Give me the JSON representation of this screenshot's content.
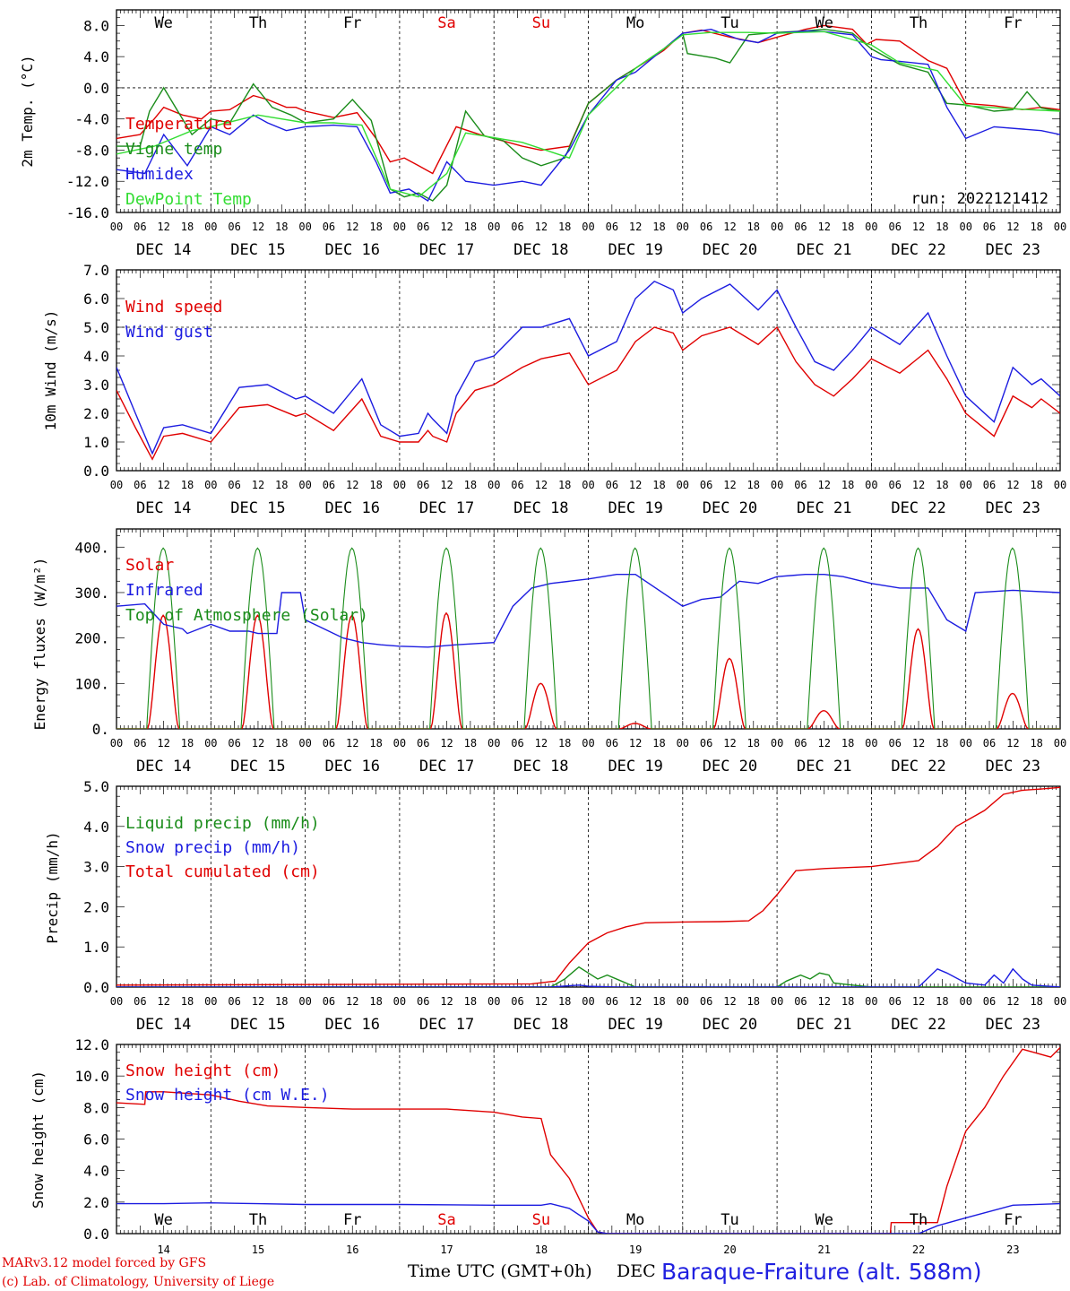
{
  "footer": {
    "credit_line1": "MARv3.12 model forced by GFS",
    "credit_line2": "(c) Lab. of Climatology, University of Liege",
    "time_axis_title": "Time UTC (GMT+0h)",
    "dec_label": "DEC",
    "station": "Baraque-Fraiture (alt. 588m)"
  },
  "common": {
    "hour_ticks": [
      "00",
      "06",
      "12",
      "18"
    ],
    "final_hour": "00",
    "date_labels": [
      "DEC 14",
      "DEC 15",
      "DEC 16",
      "DEC 17",
      "DEC 18",
      "DEC 19",
      "DEC 20",
      "DEC 21",
      "DEC 22",
      "DEC 23"
    ],
    "bottom_day_numbers": [
      "14",
      "15",
      "16",
      "17",
      "18",
      "19",
      "20",
      "21",
      "22",
      "23"
    ],
    "weekdays": [
      "We",
      "Th",
      "Fr",
      "Sa",
      "Su",
      "Mo",
      "Tu",
      "We",
      "Th",
      "Fr"
    ],
    "weekend_color": "#e00000",
    "colors": {
      "red": "#e00000",
      "green": "#1a8c1a",
      "blue": "#1c1ce0",
      "lightgreen": "#33dd33"
    }
  },
  "chart_data": [
    {
      "type": "line",
      "ylabel": "2m Temp. (°C)",
      "ylim": [
        -16,
        10
      ],
      "yticks": [
        "8.0",
        "4.0",
        "0.0",
        "-4.0",
        "-8.0",
        "-12.0",
        "-16.0"
      ],
      "run_label": "run: 2022121412",
      "x_unit": "days since DEC 14 00 UTC",
      "series": [
        {
          "name": "Temperature",
          "color": "red",
          "x": [
            0,
            0.25,
            0.4,
            0.5,
            0.7,
            0.9,
            1,
            1.2,
            1.45,
            1.6,
            1.8,
            1.9,
            2,
            2.3,
            2.55,
            2.75,
            2.9,
            3.05,
            3.2,
            3.35,
            3.6,
            3.85,
            4,
            4.3,
            4.5,
            4.8,
            5,
            5.3,
            5.5,
            5.8,
            6,
            6.2,
            6.5,
            6.8,
            7,
            7.3,
            7.5,
            7.8,
            7.95,
            8.05,
            8.3,
            8.6,
            8.8,
            9,
            9.3,
            9.6,
            9.8,
            10
          ],
          "y": [
            -6.5,
            -6,
            -4,
            -2.5,
            -3.5,
            -4,
            -3,
            -2.8,
            -1,
            -1.5,
            -2.5,
            -2.5,
            -3,
            -3.8,
            -3.2,
            -6.5,
            -9.5,
            -9,
            -10,
            -11,
            -5,
            -6,
            -6.5,
            -7.5,
            -8,
            -7.5,
            -2,
            1,
            2.5,
            4.8,
            7,
            7.4,
            6.5,
            5.8,
            6.5,
            7.5,
            8,
            7.5,
            5.6,
            6.2,
            6,
            3.5,
            2.5,
            -2,
            -2.3,
            -2.8,
            -2.5,
            -2.8
          ]
        },
        {
          "name": "Vigne temp",
          "color": "green",
          "x": [
            0,
            0.25,
            0.35,
            0.5,
            0.65,
            0.8,
            1,
            1.2,
            1.45,
            1.65,
            1.85,
            2,
            2.3,
            2.5,
            2.7,
            2.9,
            3.05,
            3.2,
            3.35,
            3.5,
            3.7,
            3.9,
            4.1,
            4.3,
            4.5,
            4.75,
            5,
            5.3,
            5.5,
            5.8,
            6,
            6.05,
            6.2,
            6.35,
            6.5,
            6.7,
            7,
            7.3,
            7.5,
            7.8,
            8,
            8.3,
            8.6,
            8.8,
            9,
            9.3,
            9.5,
            9.65,
            9.8,
            10
          ],
          "y": [
            -7.5,
            -7.5,
            -3,
            0,
            -3,
            -6,
            -4,
            -4.5,
            0.5,
            -2.5,
            -3.5,
            -4.5,
            -4,
            -1.5,
            -4.2,
            -13,
            -14,
            -13.5,
            -14.5,
            -12.5,
            -3,
            -6.2,
            -6.8,
            -9,
            -10,
            -9,
            -2,
            1,
            2.5,
            5,
            7,
            4.4,
            4.1,
            3.8,
            3.2,
            6.8,
            7.1,
            7.3,
            7.5,
            7,
            5,
            3,
            2,
            -2,
            -2.2,
            -3,
            -2.8,
            -0.5,
            -2.6,
            -3
          ]
        },
        {
          "name": "Humidex",
          "color": "blue",
          "x": [
            0,
            0.3,
            0.5,
            0.75,
            1,
            1.2,
            1.45,
            1.6,
            1.8,
            2,
            2.3,
            2.55,
            2.75,
            2.9,
            3.1,
            3.3,
            3.5,
            3.7,
            4,
            4.3,
            4.5,
            4.8,
            5,
            5.3,
            5.5,
            5.8,
            6,
            6.3,
            6.6,
            6.8,
            7,
            7.3,
            7.5,
            7.8,
            8,
            8.1,
            8.3,
            8.6,
            8.8,
            9,
            9.3,
            9.6,
            9.8,
            10
          ],
          "y": [
            -10.5,
            -11,
            -6,
            -10,
            -5,
            -6,
            -3.5,
            -4.5,
            -5.5,
            -5,
            -4.8,
            -5,
            -9.5,
            -13.5,
            -13,
            -14.5,
            -9.5,
            -12,
            -12.5,
            -12,
            -12.5,
            -8,
            -3.5,
            1,
            2,
            5,
            7,
            7.5,
            6.2,
            5.8,
            7,
            7.3,
            7.2,
            6.8,
            4,
            3.6,
            3.4,
            3,
            -2.5,
            -6.5,
            -5,
            -5.3,
            -5.5,
            -6
          ]
        },
        {
          "name": "DewPoint Temp",
          "color": "lightgreen",
          "x": [
            0,
            0.4,
            0.8,
            1,
            1.5,
            2,
            2.3,
            2.6,
            2.9,
            3.2,
            3.5,
            3.7,
            4.3,
            4.8,
            5,
            5.5,
            5.8,
            6,
            6.3,
            6.7,
            7,
            7.5,
            8,
            8.3,
            8.7,
            9,
            9.5,
            10
          ],
          "y": [
            -8.5,
            -7.5,
            -5.5,
            -5,
            -3.5,
            -4.5,
            -4.5,
            -4.8,
            -13,
            -14,
            -11,
            -5.8,
            -7,
            -9,
            -3.5,
            2.5,
            5,
            6.8,
            7.1,
            7.1,
            7,
            7.2,
            5.5,
            3.2,
            2.2,
            -2.3,
            -2.7,
            -3
          ]
        }
      ]
    },
    {
      "type": "line",
      "ylabel": "10m Wind (m/s)",
      "ylim": [
        0,
        7
      ],
      "yticks": [
        "7.0",
        "6.0",
        "5.0",
        "4.0",
        "3.0",
        "2.0",
        "1.0",
        "0.0"
      ],
      "series": [
        {
          "name": "Wind speed",
          "color": "red",
          "x": [
            0,
            0.2,
            0.38,
            0.5,
            0.7,
            1,
            1.3,
            1.6,
            1.9,
            2,
            2.3,
            2.6,
            2.8,
            3,
            3.2,
            3.3,
            3.35,
            3.5,
            3.6,
            3.8,
            4,
            4.3,
            4.5,
            4.8,
            5,
            5.3,
            5.5,
            5.7,
            5.9,
            6,
            6.2,
            6.5,
            6.8,
            7,
            7.2,
            7.4,
            7.6,
            7.8,
            8,
            8.3,
            8.6,
            8.8,
            9,
            9.3,
            9.5,
            9.7,
            9.8,
            10
          ],
          "y": [
            2.8,
            1.5,
            0.4,
            1.2,
            1.3,
            1.0,
            2.2,
            2.3,
            1.9,
            2.0,
            1.4,
            2.5,
            1.2,
            1.0,
            1.0,
            1.4,
            1.2,
            1.0,
            2.0,
            2.8,
            3.0,
            3.6,
            3.9,
            4.1,
            3.0,
            3.5,
            4.5,
            5.0,
            4.8,
            4.2,
            4.7,
            5.0,
            4.4,
            5.0,
            3.8,
            3.0,
            2.6,
            3.2,
            3.9,
            3.4,
            4.2,
            3.2,
            2.0,
            1.2,
            2.6,
            2.2,
            2.5,
            2.0
          ]
        },
        {
          "name": "Wind gust",
          "color": "blue",
          "x": [
            0,
            0.2,
            0.38,
            0.5,
            0.7,
            1,
            1.3,
            1.6,
            1.9,
            2,
            2.3,
            2.6,
            2.8,
            3,
            3.2,
            3.3,
            3.35,
            3.5,
            3.6,
            3.8,
            4,
            4.3,
            4.5,
            4.8,
            5,
            5.3,
            5.5,
            5.7,
            5.9,
            6,
            6.2,
            6.5,
            6.8,
            7,
            7.2,
            7.4,
            7.6,
            7.8,
            8,
            8.3,
            8.6,
            8.8,
            9,
            9.3,
            9.5,
            9.7,
            9.8,
            10
          ],
          "y": [
            3.6,
            2.0,
            0.6,
            1.5,
            1.6,
            1.3,
            2.9,
            3.0,
            2.5,
            2.6,
            2.0,
            3.2,
            1.6,
            1.2,
            1.3,
            2.0,
            1.8,
            1.3,
            2.6,
            3.8,
            4.0,
            5.0,
            5.0,
            5.3,
            4.0,
            4.5,
            6.0,
            6.6,
            6.3,
            5.5,
            6.0,
            6.5,
            5.6,
            6.3,
            5.0,
            3.8,
            3.5,
            4.2,
            5.0,
            4.4,
            5.5,
            4.0,
            2.6,
            1.7,
            3.6,
            3.0,
            3.2,
            2.6
          ]
        }
      ]
    },
    {
      "type": "line",
      "ylabel": "Energy fluxes (W/m²)",
      "ylim": [
        0,
        440
      ],
      "yticks": [
        "400.",
        "300.",
        "200.",
        "100.",
        "0."
      ],
      "series": [
        {
          "name": "Solar",
          "color": "red",
          "peaks": [
            250,
            250,
            250,
            255,
            100,
            12,
            155,
            40,
            220,
            78
          ]
        },
        {
          "name": "Infrared",
          "color": "blue",
          "x": [
            0,
            0.3,
            0.5,
            0.7,
            0.75,
            1,
            1.2,
            1.4,
            1.5,
            1.7,
            1.75,
            1.95,
            2,
            2.2,
            2.4,
            2.6,
            2.8,
            3,
            3.3,
            3.6,
            4,
            4.2,
            4.4,
            4.6,
            5,
            5.3,
            5.5,
            6,
            6.2,
            6.4,
            6.6,
            6.8,
            7,
            7.3,
            7.5,
            7.7,
            8,
            8.3,
            8.6,
            8.8,
            9,
            9.1,
            9.5,
            10
          ],
          "y": [
            270,
            275,
            230,
            220,
            210,
            230,
            215,
            215,
            210,
            210,
            300,
            300,
            240,
            220,
            200,
            190,
            185,
            182,
            180,
            185,
            190,
            270,
            310,
            320,
            330,
            340,
            340,
            270,
            285,
            290,
            325,
            320,
            335,
            340,
            340,
            335,
            320,
            310,
            310,
            240,
            215,
            300,
            305,
            300
          ]
        },
        {
          "name": "Top of Atmosphere (Solar)",
          "color": "green",
          "peak": 398
        }
      ]
    },
    {
      "type": "line",
      "ylabel": "Precip (mm/h)",
      "ylim": [
        0,
        5
      ],
      "yticks": [
        "5.0",
        "4.0",
        "3.0",
        "2.0",
        "1.0",
        "0.0"
      ],
      "series": [
        {
          "name": "Liquid precip (mm/h)",
          "color": "green",
          "x": [
            0,
            4.6,
            4.75,
            4.9,
            5.0,
            5.1,
            5.2,
            5.35,
            5.5,
            7.0,
            7.1,
            7.25,
            7.35,
            7.45,
            7.55,
            7.6,
            7.8,
            8.0,
            10
          ],
          "y": [
            0,
            0,
            0.2,
            0.5,
            0.35,
            0.2,
            0.3,
            0.15,
            0,
            0,
            0.15,
            0.3,
            0.2,
            0.35,
            0.3,
            0.1,
            0.05,
            0,
            0
          ]
        },
        {
          "name": "Snow precip (mm/h)",
          "color": "blue",
          "x": [
            0,
            4.6,
            4.9,
            5.0,
            5.3,
            7.0,
            8.5,
            8.7,
            8.8,
            9.0,
            9.2,
            9.3,
            9.4,
            9.5,
            9.6,
            9.7,
            10
          ],
          "y": [
            0,
            0,
            0.05,
            0.02,
            0,
            0,
            0,
            0.45,
            0.35,
            0.1,
            0.05,
            0.3,
            0.1,
            0.45,
            0.2,
            0.05,
            0
          ]
        },
        {
          "name": "Total cumulated (cm)",
          "color": "red",
          "x": [
            0,
            4.4,
            4.65,
            4.8,
            5.0,
            5.2,
            5.4,
            5.6,
            6.0,
            6.4,
            6.7,
            6.85,
            7.0,
            7.2,
            7.5,
            8.0,
            8.5,
            8.7,
            8.9,
            9.2,
            9.4,
            9.6,
            9.8,
            10
          ],
          "y": [
            0.05,
            0.08,
            0.15,
            0.6,
            1.1,
            1.35,
            1.5,
            1.6,
            1.62,
            1.63,
            1.65,
            1.9,
            2.3,
            2.9,
            2.95,
            3.0,
            3.15,
            3.5,
            4.0,
            4.4,
            4.8,
            4.9,
            4.93,
            4.97
          ]
        }
      ]
    },
    {
      "type": "line",
      "ylabel": "Snow height (cm)",
      "ylim": [
        0,
        12
      ],
      "yticks": [
        "12.0",
        "10.0",
        "8.0",
        "6.0",
        "4.0",
        "2.0",
        "0.0"
      ],
      "series": [
        {
          "name": "Snow height (cm)",
          "color": "red",
          "x": [
            0,
            0.3,
            0.31,
            0.5,
            1,
            1.3,
            1.6,
            2,
            2.5,
            3,
            3.5,
            4,
            4.3,
            4.5,
            4.6,
            4.8,
            5,
            5.1,
            5.2,
            7,
            8.2,
            8.21,
            8.7,
            8.8,
            9.0,
            9.2,
            9.4,
            9.6,
            9.9,
            10
          ],
          "y": [
            8.3,
            8.2,
            9.0,
            9.0,
            8.8,
            8.4,
            8.1,
            8.0,
            7.9,
            7.9,
            7.9,
            7.7,
            7.4,
            7.3,
            5.0,
            3.5,
            1.0,
            0.1,
            0,
            0,
            0,
            0.7,
            0.7,
            3.0,
            6.5,
            8.0,
            10.0,
            11.7,
            11.2,
            11.8
          ]
        },
        {
          "name": "Snow height (cm W.E.)",
          "color": "blue",
          "x": [
            0,
            0.5,
            1,
            1.5,
            2,
            3,
            4,
            4.5,
            4.6,
            4.8,
            5,
            5.1,
            5.2,
            8.5,
            8.7,
            9,
            9.5,
            10
          ],
          "y": [
            1.9,
            1.9,
            1.95,
            1.9,
            1.85,
            1.85,
            1.8,
            1.8,
            1.9,
            1.6,
            0.8,
            0.1,
            0,
            0,
            0.5,
            1.0,
            1.8,
            1.9
          ]
        }
      ]
    }
  ]
}
